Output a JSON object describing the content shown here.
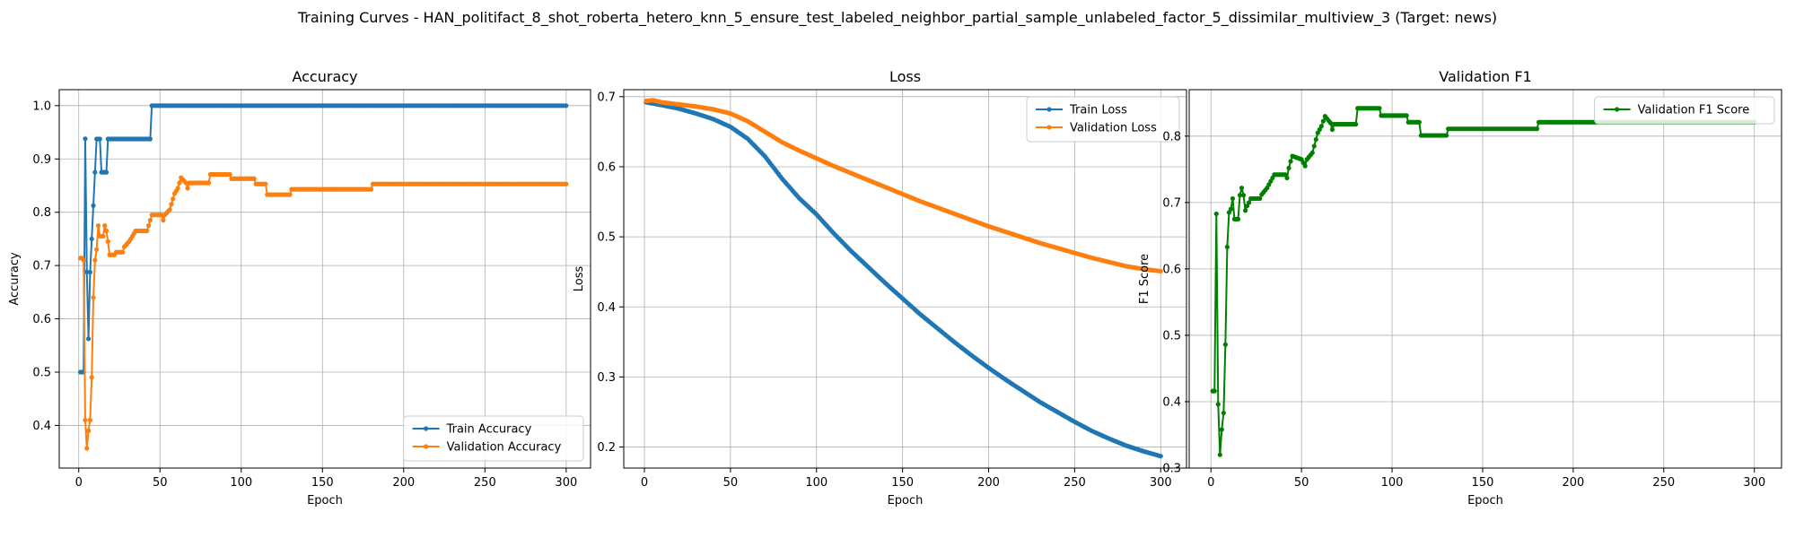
{
  "suptitle": "Training Curves - HAN_politifact_8_shot_roberta_hetero_knn_5_ensure_test_labeled_neighbor_partial_sample_unlabeled_factor_5_dissimilar_multiview_3 (Target: news)",
  "colors": {
    "blue": "#1f77b4",
    "orange": "#ff7f0e",
    "green": "#008000",
    "grid": "#b0b0b0"
  },
  "chart_data": [
    {
      "type": "line",
      "title": "Accuracy",
      "xlabel": "Epoch",
      "ylabel": "Accuracy",
      "xlim": [
        -12,
        315
      ],
      "ylim": [
        0.32,
        1.03
      ],
      "xticks": [
        0,
        50,
        100,
        150,
        200,
        250,
        300
      ],
      "yticks": [
        0.4,
        0.5,
        0.6,
        0.7,
        0.8,
        0.9,
        1.0
      ],
      "ytick_decimals": 1,
      "grid": true,
      "legend_position": "lower-right",
      "series": [
        {
          "name": "Train Accuracy",
          "color": "#1f77b4",
          "points": [
            [
              1,
              0.5
            ],
            [
              2,
              0.5
            ],
            [
              3,
              0.5
            ],
            [
              4,
              0.938
            ],
            [
              5,
              0.688
            ],
            [
              6,
              0.5625
            ],
            [
              7,
              0.6875
            ],
            [
              8,
              0.75
            ],
            [
              9,
              0.8125
            ],
            [
              10,
              0.875
            ],
            [
              11,
              0.9375
            ],
            [
              12,
              0.9375
            ],
            [
              13,
              0.9375
            ],
            [
              14,
              0.875
            ],
            [
              15,
              0.875
            ],
            [
              16,
              0.875
            ],
            [
              17,
              0.875
            ],
            [
              18,
              0.9375
            ],
            [
              44,
              0.9375
            ],
            [
              45,
              1.0
            ],
            [
              300,
              1.0
            ]
          ]
        },
        {
          "name": "Validation Accuracy",
          "color": "#ff7f0e",
          "points": [
            [
              1,
              0.714
            ],
            [
              2,
              0.714
            ],
            [
              3,
              0.71
            ],
            [
              4,
              0.41
            ],
            [
              5,
              0.357
            ],
            [
              6,
              0.39
            ],
            [
              7,
              0.41
            ],
            [
              8,
              0.49
            ],
            [
              9,
              0.64
            ],
            [
              10,
              0.71
            ],
            [
              11,
              0.73
            ],
            [
              12,
              0.775
            ],
            [
              13,
              0.755
            ],
            [
              14,
              0.755
            ],
            [
              15,
              0.755
            ],
            [
              16,
              0.775
            ],
            [
              17,
              0.765
            ],
            [
              18,
              0.745
            ],
            [
              19,
              0.72
            ],
            [
              20,
              0.72
            ],
            [
              22,
              0.72
            ],
            [
              23,
              0.725
            ],
            [
              27,
              0.725
            ],
            [
              28,
              0.735
            ],
            [
              31,
              0.745
            ],
            [
              33,
              0.755
            ],
            [
              35,
              0.765
            ],
            [
              42,
              0.765
            ],
            [
              43,
              0.775
            ],
            [
              44,
              0.785
            ],
            [
              45,
              0.795
            ],
            [
              51,
              0.795
            ],
            [
              52,
              0.785
            ],
            [
              53,
              0.795
            ],
            [
              56,
              0.805
            ],
            [
              57,
              0.815
            ],
            [
              58,
              0.825
            ],
            [
              59,
              0.835
            ],
            [
              61,
              0.845
            ],
            [
              62,
              0.855
            ],
            [
              63,
              0.865
            ],
            [
              66,
              0.855
            ],
            [
              67,
              0.845
            ],
            [
              68,
              0.855
            ],
            [
              80,
              0.855
            ],
            [
              81,
              0.871
            ],
            [
              93,
              0.871
            ],
            [
              94,
              0.863
            ],
            [
              108,
              0.863
            ],
            [
              109,
              0.853
            ],
            [
              115,
              0.853
            ],
            [
              116,
              0.833
            ],
            [
              130,
              0.833
            ],
            [
              131,
              0.843
            ],
            [
              180,
              0.843
            ],
            [
              181,
              0.853
            ],
            [
              300,
              0.853
            ]
          ]
        }
      ]
    },
    {
      "type": "line",
      "title": "Loss",
      "xlabel": "Epoch",
      "ylabel": "Loss",
      "xlim": [
        -12,
        315
      ],
      "ylim": [
        0.17,
        0.71
      ],
      "xticks": [
        0,
        50,
        100,
        150,
        200,
        250,
        300
      ],
      "yticks": [
        0.2,
        0.3,
        0.4,
        0.5,
        0.6,
        0.7
      ],
      "ytick_decimals": 1,
      "grid": true,
      "legend_position": "upper-right",
      "series": [
        {
          "name": "Train Loss",
          "color": "#1f77b4",
          "points": [
            [
              1,
              0.692
            ],
            [
              10,
              0.688
            ],
            [
              20,
              0.683
            ],
            [
              30,
              0.676
            ],
            [
              40,
              0.668
            ],
            [
              50,
              0.657
            ],
            [
              60,
              0.64
            ],
            [
              70,
              0.615
            ],
            [
              80,
              0.583
            ],
            [
              90,
              0.555
            ],
            [
              100,
              0.532
            ],
            [
              110,
              0.505
            ],
            [
              120,
              0.48
            ],
            [
              130,
              0.457
            ],
            [
              140,
              0.434
            ],
            [
              150,
              0.412
            ],
            [
              160,
              0.39
            ],
            [
              170,
              0.37
            ],
            [
              180,
              0.35
            ],
            [
              190,
              0.331
            ],
            [
              200,
              0.313
            ],
            [
              210,
              0.296
            ],
            [
              220,
              0.28
            ],
            [
              230,
              0.264
            ],
            [
              240,
              0.25
            ],
            [
              250,
              0.236
            ],
            [
              260,
              0.223
            ],
            [
              270,
              0.212
            ],
            [
              280,
              0.202
            ],
            [
              290,
              0.194
            ],
            [
              300,
              0.187
            ]
          ]
        },
        {
          "name": "Validation Loss",
          "color": "#ff7f0e",
          "points": [
            [
              1,
              0.694
            ],
            [
              5,
              0.695
            ],
            [
              10,
              0.692
            ],
            [
              20,
              0.689
            ],
            [
              30,
              0.686
            ],
            [
              40,
              0.682
            ],
            [
              50,
              0.676
            ],
            [
              60,
              0.665
            ],
            [
              70,
              0.65
            ],
            [
              80,
              0.635
            ],
            [
              90,
              0.623
            ],
            [
              100,
              0.612
            ],
            [
              110,
              0.601
            ],
            [
              120,
              0.591
            ],
            [
              130,
              0.581
            ],
            [
              140,
              0.571
            ],
            [
              150,
              0.561
            ],
            [
              160,
              0.551
            ],
            [
              170,
              0.542
            ],
            [
              180,
              0.533
            ],
            [
              190,
              0.524
            ],
            [
              200,
              0.515
            ],
            [
              210,
              0.507
            ],
            [
              220,
              0.499
            ],
            [
              230,
              0.491
            ],
            [
              240,
              0.484
            ],
            [
              250,
              0.477
            ],
            [
              260,
              0.47
            ],
            [
              270,
              0.464
            ],
            [
              280,
              0.458
            ],
            [
              290,
              0.454
            ],
            [
              300,
              0.451
            ]
          ]
        }
      ]
    },
    {
      "type": "line",
      "title": "Validation F1",
      "xlabel": "Epoch",
      "ylabel": "F1 Score",
      "xlim": [
        -12,
        315
      ],
      "ylim": [
        0.3,
        0.87
      ],
      "xticks": [
        0,
        50,
        100,
        150,
        200,
        250,
        300
      ],
      "yticks": [
        0.3,
        0.4,
        0.5,
        0.6,
        0.7,
        0.8
      ],
      "ytick_decimals": 1,
      "grid": true,
      "legend_position": "upper-right",
      "series": [
        {
          "name": "Validation F1 Score",
          "color": "#008000",
          "points": [
            [
              1,
              0.416
            ],
            [
              2,
              0.416
            ],
            [
              3,
              0.683
            ],
            [
              4,
              0.396
            ],
            [
              5,
              0.32
            ],
            [
              6,
              0.358
            ],
            [
              7,
              0.383
            ],
            [
              8,
              0.486
            ],
            [
              9,
              0.633
            ],
            [
              10,
              0.685
            ],
            [
              11,
              0.69
            ],
            [
              12,
              0.706
            ],
            [
              13,
              0.675
            ],
            [
              14,
              0.675
            ],
            [
              15,
              0.675
            ],
            [
              16,
              0.711
            ],
            [
              17,
              0.722
            ],
            [
              18,
              0.711
            ],
            [
              19,
              0.688
            ],
            [
              20,
              0.695
            ],
            [
              21,
              0.7
            ],
            [
              22,
              0.706
            ],
            [
              27,
              0.706
            ],
            [
              28,
              0.712
            ],
            [
              31,
              0.722
            ],
            [
              33,
              0.732
            ],
            [
              35,
              0.742
            ],
            [
              41,
              0.742
            ],
            [
              42,
              0.737
            ],
            [
              43,
              0.752
            ],
            [
              44,
              0.762
            ],
            [
              45,
              0.77
            ],
            [
              50,
              0.765
            ],
            [
              52,
              0.755
            ],
            [
              53,
              0.765
            ],
            [
              56,
              0.775
            ],
            [
              57,
              0.785
            ],
            [
              58,
              0.795
            ],
            [
              59,
              0.805
            ],
            [
              61,
              0.815
            ],
            [
              63,
              0.83
            ],
            [
              66,
              0.82
            ],
            [
              67,
              0.81
            ],
            [
              68,
              0.818
            ],
            [
              80,
              0.818
            ],
            [
              81,
              0.842
            ],
            [
              93,
              0.842
            ],
            [
              94,
              0.831
            ],
            [
              108,
              0.831
            ],
            [
              109,
              0.821
            ],
            [
              115,
              0.821
            ],
            [
              116,
              0.801
            ],
            [
              130,
              0.801
            ],
            [
              131,
              0.811
            ],
            [
              180,
              0.811
            ],
            [
              181,
              0.821
            ],
            [
              300,
              0.821
            ]
          ]
        }
      ]
    }
  ]
}
